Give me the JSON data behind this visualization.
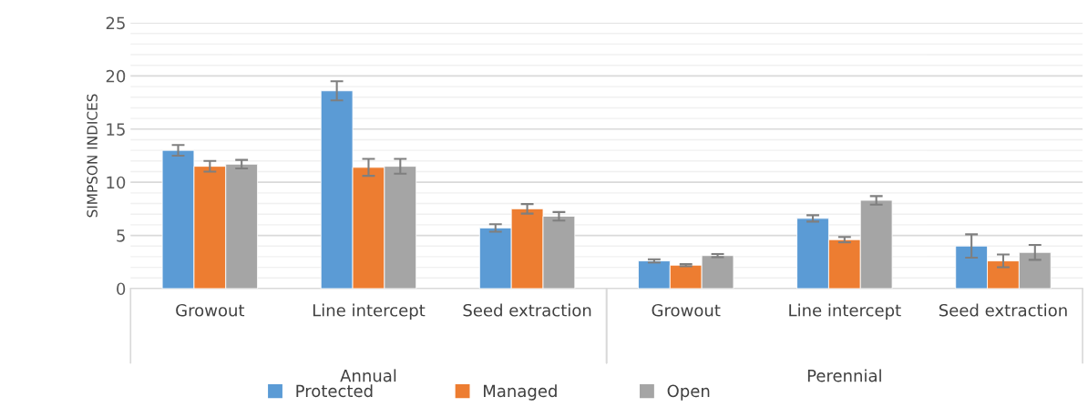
{
  "chart_data": {
    "type": "bar",
    "ylabel": "SIMPSON INDICES",
    "categories": [
      "Growout",
      "Line intercept",
      "Seed extraction",
      "Growout",
      "Line intercept",
      "Seed extraction"
    ],
    "series": [
      {
        "name": "Protected",
        "color": "#5b9bd5",
        "values": [
          13.0,
          18.6,
          5.7,
          2.6,
          6.6,
          4.0
        ],
        "errors": [
          0.5,
          0.9,
          0.35,
          0.15,
          0.3,
          1.1
        ]
      },
      {
        "name": "Managed",
        "color": "#ed7d31",
        "values": [
          11.5,
          11.4,
          7.5,
          2.2,
          4.6,
          2.6
        ],
        "errors": [
          0.5,
          0.8,
          0.45,
          0.1,
          0.25,
          0.6
        ]
      },
      {
        "name": "Open",
        "color": "#a5a5a5",
        "values": [
          11.7,
          11.5,
          6.8,
          3.1,
          8.3,
          3.4
        ],
        "errors": [
          0.4,
          0.7,
          0.4,
          0.15,
          0.4,
          0.7
        ]
      }
    ],
    "annotations": [
      "Annual",
      "Perennial"
    ],
    "ylim": [
      0,
      25
    ],
    "yticks": [
      0,
      5,
      10,
      15,
      20,
      25
    ],
    "grid": "y",
    "legend": "bottom"
  }
}
